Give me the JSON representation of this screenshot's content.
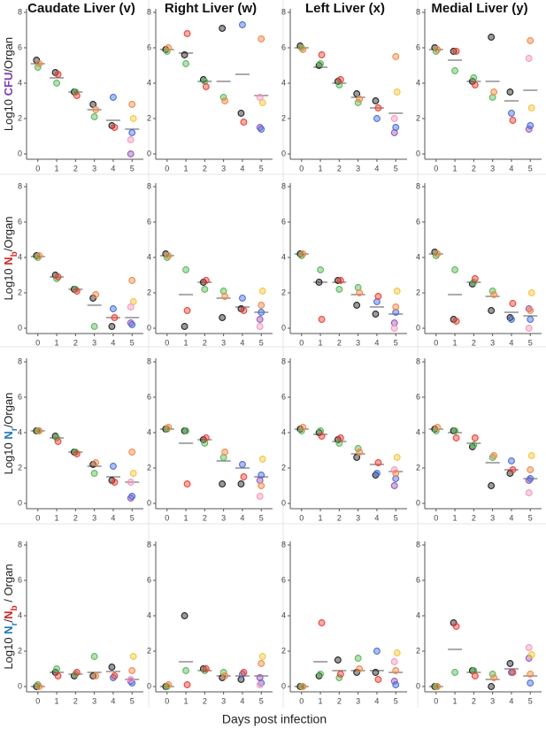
{
  "xlabel": "Days post infection",
  "point_colors": [
    "#222222",
    "#5cb85c",
    "#f08a4b",
    "#222222",
    "#5cb85c",
    "#e8443a",
    "#222222",
    "#5cb85c",
    "#e8443a",
    "#222222",
    "#5cb85c",
    "#f08a4b",
    "#222222",
    "#4a6fd8",
    "#e8443a",
    "#9b59b6",
    "#4a6fd8",
    "#f5c542",
    "#f29ac0",
    "#f08a4b"
  ],
  "chart_data": [
    {
      "type": "scatter",
      "title": "Caudate Liver (v)",
      "ylabel": [
        {
          "text": "Log10 "
        },
        {
          "text": "CFU",
          "color": "#7b3fb0"
        },
        {
          "text": "/Organ"
        }
      ],
      "x": [
        0,
        0,
        0,
        1,
        1,
        1,
        2,
        2,
        2,
        3,
        3,
        3,
        4,
        4,
        4,
        5,
        5,
        5,
        5,
        5
      ],
      "y": [
        5.3,
        4.9,
        5.1,
        4.6,
        4.0,
        4.5,
        3.5,
        3.5,
        3.3,
        2.8,
        2.1,
        2.5,
        1.6,
        3.2,
        1.5,
        0,
        1.2,
        2.0,
        0.8,
        2.8
      ],
      "means": [
        5.1,
        4.3,
        3.5,
        2.5,
        1.9,
        1.4
      ],
      "xlim": [
        -0.6,
        5.6
      ],
      "ylim": [
        -0.3,
        8.2
      ],
      "xticks": [
        0,
        1,
        2,
        3,
        4,
        5
      ],
      "yticks": [
        0,
        2,
        4,
        6,
        8
      ]
    },
    {
      "type": "scatter",
      "title": "Right Liver (w)",
      "x": [
        0,
        0,
        0,
        1,
        1,
        1,
        2,
        2,
        2,
        3,
        3,
        3,
        4,
        4,
        4,
        5,
        5,
        5,
        5,
        5
      ],
      "y": [
        5.9,
        5.8,
        6.0,
        5.6,
        5.1,
        6.8,
        4.2,
        4.1,
        3.8,
        7.1,
        3.2,
        3.0,
        2.3,
        7.3,
        1.8,
        1.5,
        1.4,
        2.9,
        3.2,
        6.5
      ],
      "means": [
        5.9,
        5.7,
        4.1,
        4.1,
        4.5,
        3.3
      ],
      "xlim": [
        -0.6,
        5.6
      ],
      "ylim": [
        -0.3,
        8.2
      ],
      "xticks": [
        0,
        1,
        2,
        3,
        4,
        5
      ],
      "yticks": [
        0,
        2,
        4,
        6,
        8
      ]
    },
    {
      "type": "scatter",
      "title": "Left Liver (x)",
      "x": [
        0,
        0,
        0,
        1,
        1,
        1,
        2,
        2,
        2,
        3,
        3,
        3,
        4,
        4,
        4,
        5,
        5,
        5,
        5,
        5
      ],
      "y": [
        6.1,
        6.0,
        5.9,
        5.0,
        5.1,
        5.6,
        4.1,
        3.9,
        4.2,
        3.4,
        2.9,
        3.1,
        3.0,
        2.0,
        2.6,
        1.2,
        1.5,
        3.5,
        2.0,
        5.5
      ],
      "means": [
        6.0,
        4.9,
        4.0,
        3.2,
        2.6,
        2.3
      ],
      "xlim": [
        -0.6,
        5.6
      ],
      "ylim": [
        -0.3,
        8.2
      ],
      "xticks": [
        0,
        1,
        2,
        3,
        4,
        5
      ],
      "yticks": [
        0,
        2,
        4,
        6,
        8
      ]
    },
    {
      "type": "scatter",
      "title": "Medial Liver (y)",
      "x": [
        0,
        0,
        0,
        1,
        1,
        1,
        2,
        2,
        2,
        3,
        3,
        3,
        4,
        4,
        4,
        5,
        5,
        5,
        5,
        5
      ],
      "y": [
        6.0,
        5.8,
        5.9,
        5.8,
        4.7,
        5.8,
        4.1,
        4.3,
        3.9,
        6.6,
        3.2,
        3.5,
        3.5,
        2.3,
        1.9,
        1.4,
        1.6,
        2.6,
        5.4,
        6.4
      ],
      "means": [
        5.9,
        5.3,
        4.1,
        4.1,
        3.0,
        3.6
      ],
      "xlim": [
        -0.6,
        5.6
      ],
      "ylim": [
        -0.3,
        8.2
      ],
      "xticks": [
        0,
        1,
        2,
        3,
        4,
        5
      ],
      "yticks": [
        0,
        2,
        4,
        6,
        8
      ]
    },
    {
      "type": "scatter",
      "ylabel": [
        {
          "text": "Log10 "
        },
        {
          "text": "N",
          "color": "#d62728"
        },
        {
          "text": "b",
          "color": "#d62728",
          "sub": true
        },
        {
          "text": "/Organ"
        }
      ],
      "x": [
        0,
        0,
        0,
        1,
        1,
        1,
        2,
        2,
        2,
        3,
        3,
        3,
        4,
        4,
        4,
        5,
        5,
        5,
        5,
        5
      ],
      "y": [
        4.1,
        4.0,
        4.1,
        3.0,
        2.8,
        2.9,
        2.2,
        2.2,
        2.1,
        1.7,
        0.1,
        1.9,
        0.1,
        1.1,
        0.6,
        0.3,
        0.2,
        1.5,
        1.2,
        2.7
      ],
      "means": [
        4.05,
        2.9,
        2.2,
        1.3,
        0.6,
        0.6
      ],
      "xlim": [
        -0.6,
        5.6
      ],
      "ylim": [
        -0.3,
        8.2
      ],
      "xticks": [
        0,
        1,
        2,
        3,
        4,
        5
      ],
      "yticks": [
        0,
        2,
        4,
        6,
        8
      ]
    },
    {
      "type": "scatter",
      "x": [
        0,
        0,
        0,
        1,
        1,
        1,
        2,
        2,
        2,
        3,
        3,
        3,
        4,
        4,
        4,
        5,
        5,
        5,
        5,
        5
      ],
      "y": [
        4.2,
        4.0,
        4.1,
        0.1,
        3.3,
        1.0,
        2.6,
        2.2,
        2.7,
        0.6,
        2.1,
        1.8,
        1.1,
        1.7,
        1.0,
        0.5,
        0.9,
        2.1,
        0.1,
        1.3
      ],
      "means": [
        4.1,
        1.9,
        2.6,
        1.7,
        1.2,
        0.9
      ],
      "xlim": [
        -0.6,
        5.6
      ],
      "ylim": [
        -0.3,
        8.2
      ],
      "xticks": [
        0,
        1,
        2,
        3,
        4,
        5
      ],
      "yticks": [
        0,
        2,
        4,
        6,
        8
      ]
    },
    {
      "type": "scatter",
      "x": [
        0,
        0,
        0,
        1,
        1,
        1,
        2,
        2,
        2,
        3,
        3,
        3,
        4,
        4,
        4,
        5,
        5,
        5,
        5,
        5
      ],
      "y": [
        4.2,
        4.1,
        4.2,
        2.6,
        3.3,
        0.5,
        2.7,
        2.2,
        2.7,
        1.3,
        2.3,
        2.0,
        0.8,
        1.5,
        1.8,
        0.3,
        0.9,
        2.1,
        0.0,
        1.2
      ],
      "means": [
        4.2,
        2.6,
        2.6,
        1.9,
        1.2,
        0.8
      ],
      "xlim": [
        -0.6,
        5.6
      ],
      "ylim": [
        -0.3,
        8.2
      ],
      "xticks": [
        0,
        1,
        2,
        3,
        4,
        5
      ],
      "yticks": [
        0,
        2,
        4,
        6,
        8
      ]
    },
    {
      "type": "scatter",
      "x": [
        0,
        0,
        0,
        1,
        1,
        1,
        2,
        2,
        2,
        3,
        3,
        3,
        4,
        4,
        4,
        5,
        5,
        5,
        5,
        5
      ],
      "y": [
        4.3,
        4.1,
        4.2,
        0.5,
        3.3,
        0.4,
        2.5,
        2.6,
        2.8,
        1.0,
        2.1,
        1.9,
        0.6,
        0.5,
        1.4,
        1.1,
        0.5,
        2.0,
        0.0,
        1.0
      ],
      "means": [
        4.2,
        1.9,
        2.6,
        1.8,
        0.9,
        0.7
      ],
      "xlim": [
        -0.6,
        5.6
      ],
      "ylim": [
        -0.3,
        8.2
      ],
      "xticks": [
        0,
        1,
        2,
        3,
        4,
        5
      ],
      "yticks": [
        0,
        2,
        4,
        6,
        8
      ]
    },
    {
      "type": "scatter",
      "ylabel": [
        {
          "text": "Log10 "
        },
        {
          "text": "N",
          "color": "#1f77b4"
        },
        {
          "text": "r",
          "color": "#1f77b4",
          "sub": true
        },
        {
          "text": "/Organ"
        }
      ],
      "x": [
        0,
        0,
        0,
        1,
        1,
        1,
        2,
        2,
        2,
        3,
        3,
        3,
        4,
        4,
        4,
        5,
        5,
        5,
        5,
        5
      ],
      "y": [
        4.1,
        4.1,
        4.1,
        3.8,
        3.7,
        3.5,
        2.9,
        2.9,
        2.8,
        2.2,
        1.7,
        2.3,
        1.3,
        2.1,
        1.2,
        0.3,
        0.4,
        1.7,
        1.2,
        2.9
      ],
      "means": [
        4.1,
        3.7,
        2.9,
        2.1,
        1.5,
        1.2
      ],
      "xlim": [
        -0.6,
        5.6
      ],
      "ylim": [
        -0.3,
        8.2
      ],
      "xticks": [
        0,
        1,
        2,
        3,
        4,
        5
      ],
      "yticks": [
        0,
        2,
        4,
        6,
        8
      ]
    },
    {
      "type": "scatter",
      "x": [
        0,
        0,
        0,
        1,
        1,
        1,
        2,
        2,
        2,
        3,
        3,
        3,
        4,
        4,
        4,
        5,
        5,
        5,
        5,
        5
      ],
      "y": [
        4.2,
        4.2,
        4.3,
        4.1,
        4.1,
        1.1,
        3.6,
        3.4,
        3.7,
        1.1,
        2.6,
        2.9,
        1.1,
        2.2,
        1.5,
        1.3,
        1.6,
        2.5,
        0.4,
        1.0
      ],
      "means": [
        4.2,
        3.4,
        3.6,
        2.4,
        2.0,
        1.5
      ],
      "xlim": [
        -0.6,
        5.6
      ],
      "ylim": [
        -0.3,
        8.2
      ],
      "xticks": [
        0,
        1,
        2,
        3,
        4,
        5
      ],
      "yticks": [
        0,
        2,
        4,
        6,
        8
      ]
    },
    {
      "type": "scatter",
      "x": [
        0,
        0,
        0,
        1,
        1,
        1,
        2,
        2,
        2,
        3,
        3,
        3,
        4,
        4,
        4,
        5,
        5,
        5,
        5,
        5
      ],
      "y": [
        4.2,
        4.1,
        4.3,
        4.0,
        4.1,
        3.8,
        3.6,
        3.4,
        3.7,
        2.6,
        3.1,
        2.9,
        1.6,
        1.7,
        2.3,
        1.0,
        1.4,
        2.6,
        1.9,
        1.7
      ],
      "means": [
        4.2,
        3.9,
        3.5,
        2.8,
        2.2,
        1.8
      ],
      "xlim": [
        -0.6,
        5.6
      ],
      "ylim": [
        -0.3,
        8.2
      ],
      "xticks": [
        0,
        1,
        2,
        3,
        4,
        5
      ],
      "yticks": [
        0,
        2,
        4,
        6,
        8
      ]
    },
    {
      "type": "scatter",
      "x": [
        0,
        0,
        0,
        1,
        1,
        1,
        2,
        2,
        2,
        3,
        3,
        3,
        4,
        4,
        4,
        5,
        5,
        5,
        5,
        5
      ],
      "y": [
        4.2,
        4.1,
        4.3,
        4.1,
        4.1,
        3.7,
        3.2,
        3.3,
        3.7,
        1.0,
        2.6,
        2.7,
        1.7,
        2.4,
        1.9,
        1.3,
        1.4,
        2.7,
        0.6,
        1.9
      ],
      "means": [
        4.2,
        4.0,
        3.4,
        2.3,
        1.9,
        1.4
      ],
      "xlim": [
        -0.6,
        5.6
      ],
      "ylim": [
        -0.3,
        8.2
      ],
      "xticks": [
        0,
        1,
        2,
        3,
        4,
        5
      ],
      "yticks": [
        0,
        2,
        4,
        6,
        8
      ]
    },
    {
      "type": "scatter",
      "ylabel": [
        {
          "text": "Log10 "
        },
        {
          "text": "N",
          "color": "#1f77b4"
        },
        {
          "text": "r",
          "color": "#1f77b4",
          "sub": true
        },
        {
          "text": "/"
        },
        {
          "text": "N",
          "color": "#d62728"
        },
        {
          "text": "b",
          "color": "#d62728",
          "sub": true
        },
        {
          "text": " / Organ"
        }
      ],
      "x": [
        0,
        0,
        0,
        1,
        1,
        1,
        2,
        2,
        2,
        3,
        3,
        3,
        4,
        4,
        4,
        5,
        5,
        5,
        5,
        5
      ],
      "y": [
        0,
        0.1,
        0,
        0.8,
        1.0,
        0.6,
        0.6,
        0.7,
        0.8,
        0.6,
        1.7,
        0.6,
        1.1,
        0.5,
        0.6,
        0.3,
        0.2,
        1.7,
        0.4,
        0.9
      ],
      "means": [
        0,
        0.8,
        0.7,
        0.8,
        0.85,
        0.4
      ],
      "xlim": [
        -0.6,
        5.6
      ],
      "ylim": [
        -0.3,
        8.2
      ],
      "xticks": [
        0,
        1,
        2,
        3,
        4,
        5
      ],
      "yticks": [
        0,
        2,
        4,
        6,
        8
      ]
    },
    {
      "type": "scatter",
      "x": [
        0,
        0,
        0,
        1,
        1,
        1,
        2,
        2,
        2,
        3,
        3,
        3,
        4,
        4,
        4,
        5,
        5,
        5,
        5,
        5
      ],
      "y": [
        0,
        0,
        0.1,
        4.0,
        0.9,
        0.1,
        1.0,
        0.9,
        1.0,
        0.5,
        0.8,
        0.6,
        0.4,
        0.7,
        0.8,
        0.5,
        0.2,
        1.7,
        0.1,
        1.3
      ],
      "means": [
        0,
        1.4,
        0.9,
        0.6,
        0.6,
        0.6
      ],
      "xlim": [
        -0.6,
        5.6
      ],
      "ylim": [
        -0.3,
        8.2
      ],
      "xticks": [
        0,
        1,
        2,
        3,
        4,
        5
      ],
      "yticks": [
        0,
        2,
        4,
        6,
        8
      ]
    },
    {
      "type": "scatter",
      "x": [
        0,
        0,
        0,
        1,
        1,
        1,
        2,
        2,
        2,
        3,
        3,
        3,
        4,
        4,
        4,
        5,
        5,
        5,
        5,
        5
      ],
      "y": [
        0,
        0,
        0,
        0.6,
        0.7,
        3.6,
        1.5,
        0.5,
        0.7,
        0.8,
        1.6,
        1.0,
        0.8,
        2.0,
        0.4,
        0.3,
        0.1,
        1.9,
        1.4,
        0.9
      ],
      "means": [
        0,
        1.4,
        0.9,
        0.9,
        0.9,
        0.8
      ],
      "xlim": [
        -0.6,
        5.6
      ],
      "ylim": [
        -0.3,
        8.2
      ],
      "xticks": [
        0,
        1,
        2,
        3,
        4,
        5
      ],
      "yticks": [
        0,
        2,
        4,
        6,
        8
      ]
    },
    {
      "type": "scatter",
      "x": [
        0,
        0,
        0,
        1,
        1,
        1,
        2,
        2,
        2,
        3,
        3,
        3,
        4,
        4,
        4,
        5,
        5,
        5,
        5,
        5
      ],
      "y": [
        0,
        0,
        0,
        3.6,
        0.8,
        3.4,
        0.9,
        0.9,
        0.6,
        0.0,
        0.7,
        0.5,
        1.3,
        0.8,
        0.8,
        1.6,
        0.2,
        1.8,
        2.2,
        0.7
      ],
      "means": [
        0,
        2.1,
        0.8,
        0.4,
        1.0,
        0.6
      ],
      "xlim": [
        -0.6,
        5.6
      ],
      "ylim": [
        -0.3,
        8.2
      ],
      "xticks": [
        0,
        1,
        2,
        3,
        4,
        5
      ],
      "yticks": [
        0,
        2,
        4,
        6,
        8
      ]
    }
  ]
}
